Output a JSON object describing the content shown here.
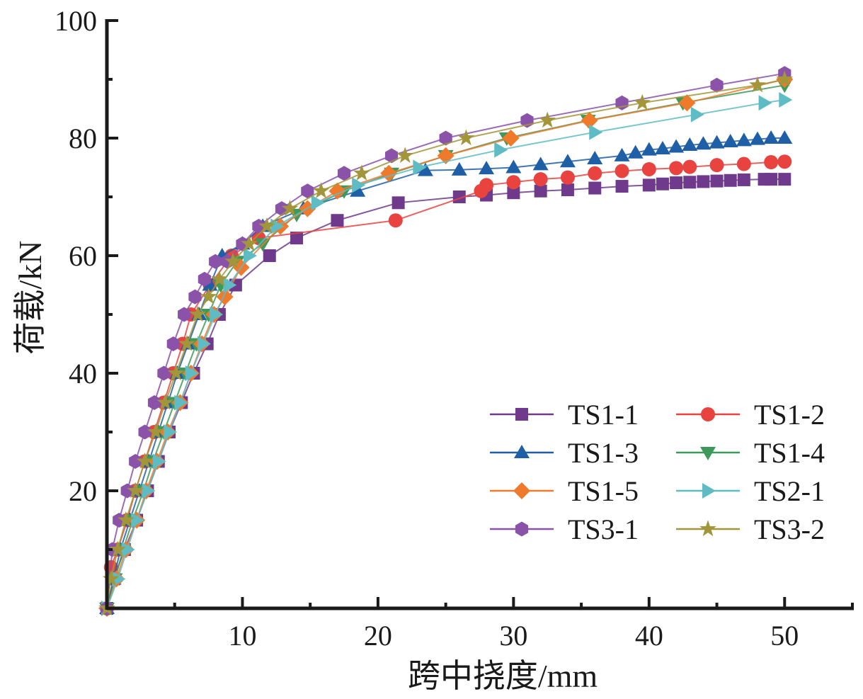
{
  "chart_data": {
    "type": "line",
    "title": "",
    "xlabel": "跨中挠度/mm",
    "ylabel": "荷载/kN",
    "xlim": [
      0,
      55
    ],
    "ylim": [
      0,
      100
    ],
    "x_ticks": [
      10,
      20,
      30,
      40,
      50
    ],
    "y_ticks": [
      20,
      40,
      60,
      80,
      100
    ],
    "x_minor_step": 5,
    "y_minor_step": 10,
    "grid": false,
    "legend_position": "bottom-right",
    "legend_columns": 2,
    "series": [
      {
        "name": "TS1-1",
        "color": "#6f3a8c",
        "marker": "square",
        "x": [
          0,
          0.5,
          1.3,
          2.2,
          3.0,
          3.8,
          4.6,
          5.5,
          6.4,
          7.4,
          8.3,
          9.5,
          12.0,
          14.0,
          17.0,
          21.5,
          26.0,
          28.0,
          30.0,
          32.0,
          34.0,
          36.0,
          38.0,
          40.0,
          41.0,
          42.0,
          43.0,
          44.0,
          45.0,
          46.0,
          47.0,
          48.5,
          49.0,
          50.0
        ],
        "y": [
          0,
          5,
          10,
          15,
          20,
          25,
          30,
          35,
          40,
          45,
          50,
          55,
          60,
          63,
          66,
          69,
          70,
          70.3,
          70.7,
          71,
          71.2,
          71.5,
          71.8,
          72,
          72.2,
          72.4,
          72.5,
          72.6,
          72.7,
          72.8,
          72.9,
          73,
          73,
          73
        ]
      },
      {
        "name": "TS1-2",
        "color": "#e8433f",
        "marker": "circle",
        "x": [
          0,
          0.3,
          0.8,
          1.5,
          2.1,
          2.8,
          3.5,
          4.2,
          4.9,
          5.6,
          6.2,
          7.6,
          9.2,
          11.2,
          21.3,
          27.6,
          28.0,
          30.0,
          32.0,
          34.0,
          36.0,
          38.0,
          40.0,
          42.0,
          43.0,
          45.0,
          47.0,
          49.0,
          50.0
        ],
        "y": [
          0,
          7,
          10,
          15,
          20,
          25,
          30,
          35,
          40,
          45,
          50,
          55,
          60,
          63,
          66,
          71,
          72,
          72.5,
          73,
          73.3,
          74,
          74.4,
          74.7,
          74.9,
          75.1,
          75.4,
          75.6,
          75.9,
          76
        ]
      },
      {
        "name": "TS1-3",
        "color": "#1f5fa6",
        "marker": "triangle-up",
        "x": [
          0,
          0.5,
          1.0,
          1.7,
          2.4,
          3.1,
          3.8,
          4.5,
          5.2,
          6.0,
          6.8,
          7.6,
          8.5,
          10.0,
          11.5,
          14.5,
          18.5,
          23.5,
          26.0,
          28.0,
          30.0,
          32.0,
          34.0,
          36.0,
          38.0,
          39.0,
          40.0,
          41.0,
          42.0,
          43.0,
          44.0,
          45.0,
          46.0,
          47.0,
          48.0,
          49.0,
          50.0
        ],
        "y": [
          0,
          5,
          10,
          15,
          20,
          25,
          30,
          35,
          40,
          45,
          50,
          55,
          60,
          62,
          65,
          68,
          71,
          74.5,
          74.6,
          74.8,
          75,
          75.5,
          76,
          76.5,
          77,
          77.5,
          78,
          78.2,
          78.5,
          78.8,
          79,
          79.2,
          79.4,
          79.6,
          79.8,
          80,
          80
        ]
      },
      {
        "name": "TS1-4",
        "color": "#3d9a5a",
        "marker": "triangle-down",
        "x": [
          0,
          0.6,
          1.2,
          1.9,
          2.7,
          3.4,
          4.2,
          5.0,
          5.8,
          6.6,
          7.5,
          8.4,
          9.6,
          11.5,
          14.0,
          17.5,
          21.0,
          25.0,
          29.5,
          35.5,
          42.5,
          50.0
        ],
        "y": [
          0,
          5,
          10,
          15,
          20,
          25,
          30,
          35,
          40,
          45,
          50,
          55,
          59,
          62,
          67,
          71,
          74,
          77,
          80,
          83,
          86,
          89
        ]
      },
      {
        "name": "TS1-5",
        "color": "#f07a2c",
        "marker": "diamond",
        "x": [
          0,
          0.7,
          1.4,
          2.2,
          2.9,
          3.7,
          4.5,
          5.4,
          6.2,
          7.0,
          7.9,
          8.7,
          9.9,
          12.8,
          14.8,
          17.0,
          20.8,
          25.0,
          29.8,
          35.6,
          42.8,
          50.0
        ],
        "y": [
          0,
          5,
          10,
          15,
          20,
          25,
          30,
          35,
          40,
          45,
          50,
          53,
          58,
          65,
          68,
          71,
          74,
          77,
          80,
          83,
          86,
          90
        ]
      },
      {
        "name": "TS2-1",
        "color": "#5fbcc4",
        "marker": "triangle-right",
        "x": [
          0,
          0.8,
          1.5,
          2.2,
          3.0,
          3.8,
          4.6,
          5.4,
          6.2,
          7.1,
          8.0,
          9.0,
          10.5,
          12.5,
          15.5,
          18.5,
          23.0,
          29.0,
          36.0,
          43.5,
          48.5,
          50.0
        ],
        "y": [
          0,
          5,
          10,
          15,
          20,
          25,
          30,
          35,
          40,
          45,
          50,
          55,
          60,
          65,
          69,
          72,
          75,
          78,
          81,
          84,
          86,
          86.5
        ]
      },
      {
        "name": "TS3-1",
        "color": "#8a52a8",
        "marker": "hexagon",
        "x": [
          0,
          0.4,
          0.9,
          1.5,
          2.1,
          2.8,
          3.5,
          4.2,
          4.9,
          5.7,
          6.5,
          7.2,
          8.0,
          8.9,
          10.0,
          11.2,
          12.9,
          14.8,
          17.5,
          21.0,
          25.0,
          31.0,
          38.0,
          45.0,
          50.0
        ],
        "y": [
          0,
          10,
          15,
          20,
          25,
          30,
          35,
          40,
          45,
          50,
          53,
          56,
          59,
          59,
          62,
          65,
          68,
          71,
          74,
          77,
          80,
          83,
          86,
          89,
          91
        ]
      },
      {
        "name": "TS3-2",
        "color": "#a3963a",
        "marker": "star",
        "x": [
          0,
          0.3,
          0.8,
          1.4,
          2.1,
          2.8,
          3.6,
          4.3,
          5.1,
          5.9,
          6.7,
          7.5,
          8.3,
          9.3,
          10.5,
          11.8,
          13.5,
          15.8,
          18.8,
          22.0,
          26.5,
          32.5,
          39.5,
          48.0,
          50.0
        ],
        "y": [
          0,
          5,
          10,
          15,
          20,
          25,
          30,
          35,
          40,
          45,
          50,
          53,
          56,
          59,
          62,
          65,
          68,
          71,
          74,
          77,
          80,
          83,
          86,
          89,
          90
        ]
      }
    ]
  }
}
